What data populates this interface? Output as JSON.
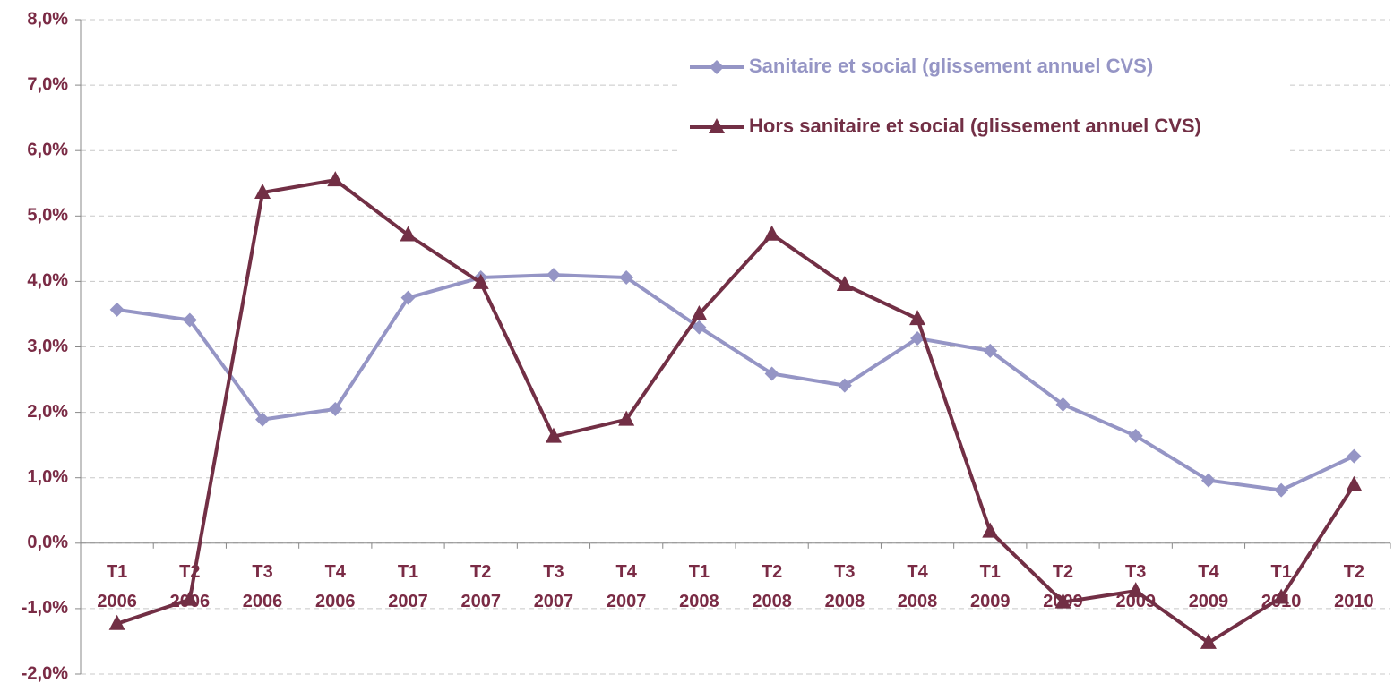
{
  "chart_data": {
    "type": "line",
    "categories": [
      "T1 2006",
      "T2 2006",
      "T3 2006",
      "T4 2006",
      "T1 2007",
      "T2 2007",
      "T3 2007",
      "T4 2007",
      "T1 2008",
      "T2 2008",
      "T3 2008",
      "T4 2008",
      "T1 2009",
      "T2 2009",
      "T3 2009",
      "T4 2009",
      "T1 2010",
      "T2 2010"
    ],
    "series": [
      {
        "name": "Sanitaire et social (glissement annuel CVS)",
        "color": "#9595c5",
        "marker": "diamond",
        "values": [
          3.57,
          3.41,
          1.89,
          2.05,
          3.75,
          4.06,
          4.1,
          4.06,
          3.3,
          2.59,
          2.41,
          3.13,
          2.94,
          2.12,
          1.64,
          0.96,
          0.81,
          1.33
        ]
      },
      {
        "name": "Hors sanitaire et social (glissement annuel CVS)",
        "color": "#722f45",
        "marker": "triangle",
        "values": [
          -1.23,
          -0.86,
          5.36,
          5.55,
          4.71,
          3.98,
          1.63,
          1.89,
          3.5,
          4.72,
          3.95,
          3.43,
          0.18,
          -0.9,
          -0.73,
          -1.52,
          -0.83,
          0.89
        ]
      }
    ],
    "ylim": [
      -2,
      8
    ],
    "yticks": [
      {
        "value": -2,
        "label": "-2,0%"
      },
      {
        "value": -1,
        "label": "-1,0%"
      },
      {
        "value": 0,
        "label": "0,0%"
      },
      {
        "value": 1,
        "label": "1,0%"
      },
      {
        "value": 2,
        "label": "2,0%"
      },
      {
        "value": 3,
        "label": "3,0%"
      },
      {
        "value": 4,
        "label": "4,0%"
      },
      {
        "value": 5,
        "label": "5,0%"
      },
      {
        "value": 6,
        "label": "6,0%"
      },
      {
        "value": 7,
        "label": "7,0%"
      },
      {
        "value": 8,
        "label": "8,0%"
      }
    ],
    "grid": true,
    "legend": "top-right"
  }
}
